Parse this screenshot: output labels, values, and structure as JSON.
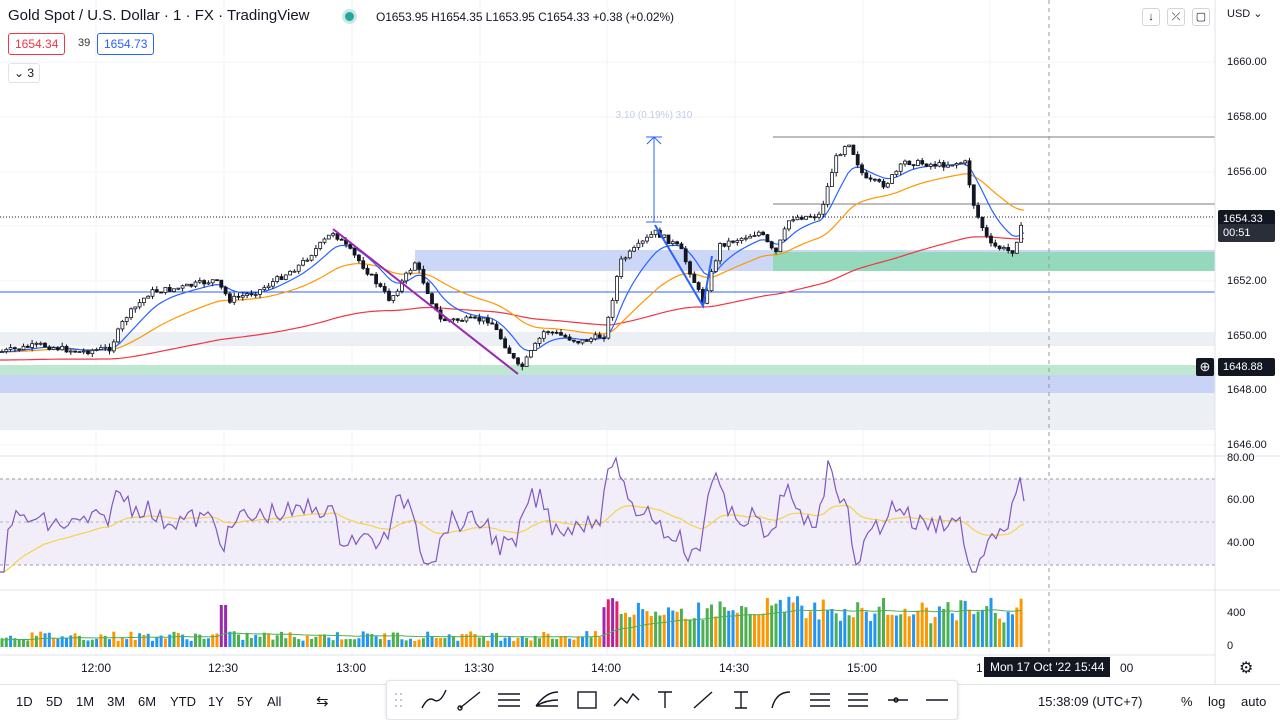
{
  "header": {
    "title": "Gold Spot / U.S. Dollar · 1 · FX · TradingView",
    "ohlc": "O1653.95 H1654.35 L1653.95 C1654.33 +0.38 (+0.02%)",
    "sell_price": "1654.34",
    "spread": "39",
    "buy_price": "1654.73",
    "indicators_count": "3",
    "currency": "USD"
  },
  "toolbar_icons": [
    "arrow-down-icon",
    "collapse-icon",
    "fullscreen-icon"
  ],
  "price_axis": {
    "ticks": [
      "1660.00",
      "1658.00",
      "1656.00",
      "1652.00",
      "1650.00",
      "1648.00",
      "1646.00"
    ],
    "last_price_label": "1654.33",
    "countdown": "00:51",
    "crosshair_price": "1648.88"
  },
  "rsi_axis": {
    "ticks": [
      "80.00",
      "60.00",
      "40.00"
    ]
  },
  "volume_axis": {
    "ticks": [
      "400",
      "0"
    ]
  },
  "time_axis": {
    "ticks": [
      "12:00",
      "12:30",
      "13:00",
      "13:30",
      "14:00",
      "14:30",
      "15:00",
      "1",
      "00"
    ],
    "crosshair_time": "Mon 17 Oct '22   15:44"
  },
  "measure_label": "3.10 (0.19%) 310",
  "ranges": [
    "1D",
    "5D",
    "1M",
    "3M",
    "6M",
    "YTD",
    "1Y",
    "5Y",
    "All"
  ],
  "draw_tools": [
    "drag-handle-icon",
    "brush-icon",
    "trend-line-icon",
    "parallel-channel-icon",
    "pitchfork-icon",
    "rectangle-icon",
    "path-icon",
    "text-icon",
    "line-icon",
    "anchored-text-icon",
    "curve-icon",
    "fib-icon",
    "gann-icon",
    "horizontal-ray-icon",
    "horizontal-line-icon"
  ],
  "footer": {
    "clock": "15:38:09 (UTC+7)",
    "percent": "%",
    "log": "log",
    "auto": "auto"
  },
  "colors": {
    "up": "#131722",
    "down": "#131722",
    "ema_fast": "#2962ff",
    "ema_mid": "#ff9800",
    "ema_slow": "#f23645",
    "rsi": "#7e57c2",
    "rsi_ma": "#f5d24a",
    "vol_green": "#4caf50",
    "vol_orange": "#ff9800",
    "vol_blue": "#2196f3",
    "vol_purple": "#9c27b0"
  }
}
